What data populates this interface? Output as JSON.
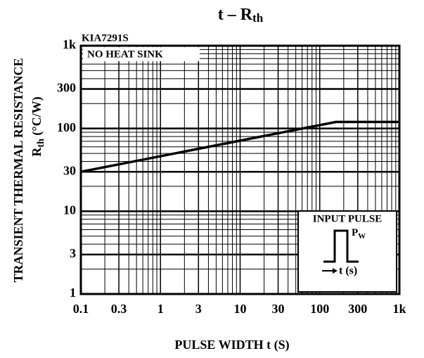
{
  "chart_data": {
    "type": "line",
    "title": "t  –  R",
    "title_subscript": "th",
    "x_label": "PULSE WIDTH t (S)",
    "y_label": "TRANSIENT THERMAL RESISTANCE",
    "y_label_2": {
      "symbol": "R",
      "subscript": "th",
      "unit": "(°C/W)"
    },
    "model": "KIA7291S",
    "condition": "NO HEAT SINK",
    "inset": {
      "title": "INPUT PULSE",
      "pulse_label": "P",
      "pulse_subscript": "W",
      "axis_label": "t (s)"
    },
    "x_scale": "log",
    "y_scale": "log",
    "grid": true,
    "color": "#000000",
    "x": [
      0.1,
      160,
      1000
    ],
    "values": [
      30,
      120,
      120
    ],
    "xlim": [
      0.1,
      1000
    ],
    "ylim": [
      1,
      1000
    ],
    "xticks": [
      0.1,
      0.3,
      1,
      3,
      10,
      30,
      100,
      300,
      {
        "value": 1000,
        "label": "1k"
      }
    ],
    "yticks": [
      1,
      3,
      10,
      30,
      100,
      300,
      {
        "value": 1000,
        "label": "1k"
      }
    ],
    "x_minor_ticks": [
      0.2,
      0.4,
      0.5,
      0.6,
      0.7,
      0.8,
      0.9,
      2,
      4,
      5,
      6,
      7,
      8,
      9,
      20,
      40,
      50,
      60,
      70,
      80,
      90,
      200,
      400,
      500,
      600,
      700,
      800,
      900
    ],
    "y_minor_ticks": [
      2,
      4,
      5,
      6,
      7,
      8,
      9,
      20,
      40,
      50,
      60,
      70,
      80,
      90,
      200,
      400,
      500,
      600,
      700,
      800,
      900
    ]
  }
}
